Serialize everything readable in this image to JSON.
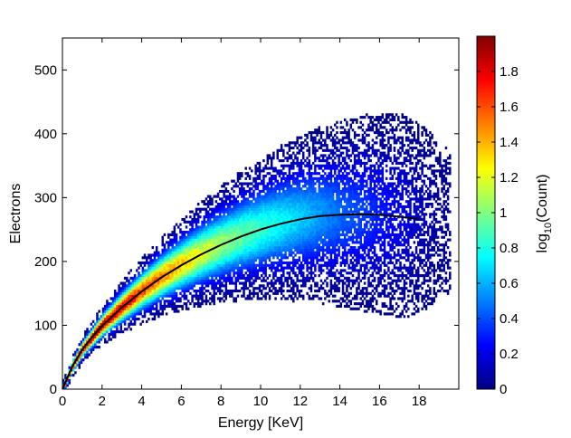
{
  "chart_data": {
    "type": "heatmap",
    "xlabel": "Energy [KeV]",
    "ylabel": "Electrons",
    "xlim": [
      0,
      20
    ],
    "ylim": [
      0,
      550
    ],
    "x_ticks": [
      0,
      2,
      4,
      6,
      8,
      10,
      12,
      14,
      16,
      18
    ],
    "y_ticks": [
      0,
      100,
      200,
      300,
      400,
      500
    ],
    "colorbar": {
      "label_main": "log",
      "label_sub": "10",
      "label_rest": "(Count)",
      "range": [
        0,
        2
      ],
      "ticks": [
        0,
        0.2,
        0.4,
        0.6,
        0.8,
        1,
        1.2,
        1.4,
        1.6,
        1.8
      ],
      "colormap": "jet"
    },
    "fit_curve": {
      "color": "#000000",
      "x": [
        0,
        0.5,
        1,
        1.5,
        2,
        3,
        4,
        5,
        6,
        7,
        8,
        9,
        10,
        11,
        12,
        13,
        14,
        15,
        16,
        17,
        18
      ],
      "y": [
        0,
        36,
        62,
        82,
        99,
        128,
        153,
        175,
        194,
        211,
        226,
        239,
        250,
        259,
        266,
        271,
        273,
        274,
        273,
        270,
        266
      ]
    },
    "density_ridge": {
      "x": [
        0,
        0.5,
        1,
        2,
        3,
        4,
        5,
        6,
        7,
        8,
        9,
        10,
        11,
        12,
        13,
        14,
        15,
        16,
        17,
        18,
        19
      ],
      "center_y": [
        0,
        36,
        62,
        99,
        128,
        153,
        175,
        194,
        211,
        226,
        239,
        250,
        259,
        266,
        271,
        273,
        274,
        273,
        270,
        266,
        262
      ],
      "peak_log_count": [
        1.95,
        1.95,
        1.93,
        1.9,
        1.8,
        1.65,
        1.5,
        1.35,
        1.2,
        1.05,
        0.95,
        0.85,
        0.75,
        0.65,
        0.55,
        0.45,
        0.38,
        0.3,
        0.22,
        0.12,
        0.05
      ]
    }
  }
}
